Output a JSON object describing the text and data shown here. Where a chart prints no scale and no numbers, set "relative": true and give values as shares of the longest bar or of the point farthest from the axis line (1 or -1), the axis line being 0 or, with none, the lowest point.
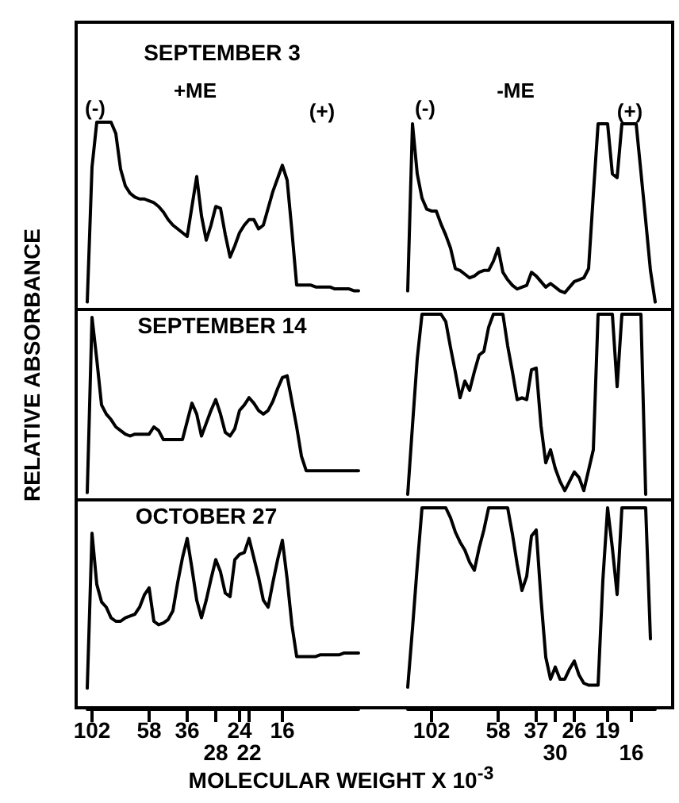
{
  "chart_data": [
    {
      "type": "line",
      "title": "SEPTEMBER 3",
      "ylabel": "RELATIVE ABSORBANCE",
      "annotations": [
        "(-)",
        "+ME",
        "(+)"
      ],
      "relative": true,
      "color": "#000000",
      "categories": [
        null,
        null,
        null,
        null,
        null,
        null,
        null,
        null,
        null,
        null,
        null,
        null,
        null,
        null,
        null,
        null,
        null,
        null,
        null,
        null,
        null,
        null,
        null,
        null,
        null,
        null,
        null,
        null,
        null,
        null,
        null,
        null,
        null,
        null,
        null,
        null,
        null,
        null,
        null,
        null,
        null,
        null,
        null,
        null,
        null,
        null,
        null,
        null,
        null,
        null,
        null,
        null,
        null,
        null,
        null,
        null,
        null,
        null
      ],
      "values": [
        0.04,
        0.76,
        1,
        1,
        1,
        1,
        0.94,
        0.75,
        0.66,
        0.62,
        0.6,
        0.59,
        0.59,
        0.58,
        0.57,
        0.55,
        0.52,
        0.48,
        0.45,
        0.43,
        0.41,
        0.39,
        0.55,
        0.71,
        0.5,
        0.37,
        0.45,
        0.55,
        0.54,
        0.4,
        0.28,
        0.34,
        0.41,
        0.45,
        0.48,
        0.48,
        0.43,
        0.45,
        0.54,
        0.63,
        0.7,
        0.77,
        0.69,
        0.42,
        0.13,
        0.13,
        0.13,
        0.13,
        0.12,
        0.12,
        0.12,
        0.12,
        0.11,
        0.11,
        0.11,
        0.11,
        0.1,
        0.1
      ]
    },
    {
      "type": "line",
      "annotations": [
        "(-)",
        "-ME",
        "(+)"
      ],
      "relative": true,
      "color": "#000000",
      "categories": [
        null,
        null,
        null,
        null,
        null,
        null,
        null,
        null,
        null,
        null,
        null,
        null,
        null,
        null,
        null,
        null,
        null,
        null,
        null,
        null,
        null,
        null,
        null,
        null,
        null,
        null,
        null,
        null,
        null,
        null,
        null,
        null,
        null,
        null,
        null,
        null,
        null,
        null,
        null,
        null,
        null,
        null,
        null,
        null,
        null,
        null,
        null,
        null,
        null,
        null,
        null,
        null,
        null
      ],
      "values": [
        0.1,
        1,
        0.73,
        0.6,
        0.54,
        0.53,
        0.53,
        0.46,
        0.4,
        0.33,
        0.22,
        0.21,
        0.19,
        0.17,
        0.18,
        0.2,
        0.21,
        0.21,
        0.26,
        0.33,
        0.2,
        0.16,
        0.13,
        0.11,
        0.12,
        0.13,
        0.2,
        0.18,
        0.15,
        0.12,
        0.14,
        0.12,
        0.1,
        0.09,
        0.12,
        0.15,
        0.16,
        0.17,
        0.22,
        0.62,
        1,
        1,
        1,
        0.73,
        0.71,
        1,
        1,
        1,
        1,
        0.74,
        0.48,
        0.21,
        0.04
      ]
    },
    {
      "type": "line",
      "title": "SEPTEMBER 14",
      "relative": true,
      "color": "#000000",
      "categories": [
        null,
        null,
        null,
        null,
        null,
        null,
        null,
        null,
        null,
        null,
        null,
        null,
        null,
        null,
        null,
        null,
        null,
        null,
        null,
        null,
        null,
        null,
        null,
        null,
        null,
        null,
        null,
        null,
        null,
        null,
        null,
        null,
        null,
        null,
        null,
        null,
        null,
        null,
        null,
        null,
        null,
        null,
        null,
        null,
        null,
        null,
        null,
        null,
        null,
        null,
        null,
        null,
        null,
        null,
        null,
        null,
        null,
        null
      ],
      "values": [
        0.04,
        1,
        0.77,
        0.52,
        0.47,
        0.44,
        0.4,
        0.38,
        0.36,
        0.35,
        0.36,
        0.36,
        0.36,
        0.36,
        0.4,
        0.38,
        0.33,
        0.33,
        0.33,
        0.33,
        0.33,
        0.43,
        0.53,
        0.47,
        0.35,
        0.42,
        0.49,
        0.55,
        0.47,
        0.37,
        0.35,
        0.39,
        0.49,
        0.52,
        0.56,
        0.53,
        0.49,
        0.47,
        0.49,
        0.54,
        0.61,
        0.67,
        0.68,
        0.54,
        0.4,
        0.24,
        0.16,
        0.16,
        0.16,
        0.16,
        0.16,
        0.16,
        0.16,
        0.16,
        0.16,
        0.16,
        0.16,
        0.16
      ]
    },
    {
      "type": "line",
      "relative": true,
      "color": "#000000",
      "categories": [
        null,
        null,
        null,
        null,
        null,
        null,
        null,
        null,
        null,
        null,
        null,
        null,
        null,
        null,
        null,
        null,
        null,
        null,
        null,
        null,
        null,
        null,
        null,
        null,
        null,
        null,
        null,
        null,
        null,
        null,
        null,
        null,
        null,
        null,
        null,
        null,
        null,
        null,
        null,
        null,
        null,
        null,
        null,
        null,
        null,
        null,
        null,
        null,
        null,
        null,
        null,
        null,
        null
      ],
      "values": [
        0.03,
        0.4,
        0.76,
        1,
        1,
        1,
        1,
        1,
        0.96,
        0.82,
        0.69,
        0.55,
        0.64,
        0.59,
        0.69,
        0.78,
        0.8,
        0.93,
        1,
        1,
        1,
        0.83,
        0.69,
        0.54,
        0.55,
        0.54,
        0.7,
        0.71,
        0.4,
        0.2,
        0.27,
        0.17,
        0.1,
        0.05,
        0.1,
        0.15,
        0.12,
        0.05,
        0.16,
        0.27,
        1,
        1,
        1,
        1,
        0.61,
        1,
        1,
        1,
        1,
        1,
        0.03,
        null,
        null
      ]
    },
    {
      "type": "line",
      "title": "OCTOBER 27",
      "xlabel": "MOLECULAR WEIGHT X 10$^{-3}$",
      "relative": true,
      "tick_labels": "x",
      "color": "#000000",
      "categories": [
        null,
        "102",
        null,
        null,
        null,
        null,
        null,
        null,
        null,
        null,
        null,
        null,
        null,
        "58",
        null,
        null,
        null,
        null,
        null,
        null,
        null,
        "36",
        null,
        null,
        null,
        null,
        null,
        "28",
        null,
        null,
        null,
        null,
        "24",
        null,
        "22",
        null,
        null,
        null,
        null,
        null,
        null,
        "16",
        null,
        null,
        null,
        null,
        null,
        null,
        null,
        null,
        null,
        null,
        null,
        null,
        null,
        null,
        null,
        null
      ],
      "values": [
        0.12,
        1,
        0.71,
        0.61,
        0.58,
        0.52,
        0.5,
        0.5,
        0.52,
        0.53,
        0.54,
        0.58,
        0.65,
        0.69,
        0.5,
        0.48,
        0.49,
        0.51,
        0.56,
        0.72,
        0.86,
        0.97,
        0.8,
        0.62,
        0.52,
        0.62,
        0.74,
        0.85,
        0.78,
        0.66,
        0.64,
        0.85,
        0.88,
        0.89,
        0.97,
        0.86,
        0.75,
        0.62,
        0.58,
        0.72,
        0.85,
        0.96,
        0.74,
        0.48,
        0.3,
        0.3,
        0.3,
        0.3,
        0.3,
        0.31,
        0.31,
        0.31,
        0.31,
        0.31,
        0.32,
        0.32,
        0.32,
        0.32
      ]
    },
    {
      "type": "line",
      "relative": true,
      "tick_labels": "x",
      "color": "#000000",
      "categories": [
        null,
        null,
        null,
        null,
        null,
        "102",
        null,
        null,
        null,
        null,
        null,
        null,
        null,
        null,
        null,
        null,
        null,
        null,
        null,
        "58",
        null,
        null,
        null,
        null,
        null,
        null,
        null,
        "37",
        null,
        null,
        null,
        "30",
        null,
        null,
        null,
        "26",
        null,
        null,
        null,
        null,
        null,
        null,
        "19",
        null,
        null,
        null,
        null,
        "16",
        null,
        null,
        null,
        null,
        null
      ],
      "values": [
        0.11,
        0.4,
        0.71,
        1,
        1,
        1,
        1,
        1,
        1,
        0.95,
        0.88,
        0.83,
        0.79,
        0.73,
        0.69,
        0.8,
        0.89,
        1,
        1,
        1,
        1,
        1,
        0.87,
        0.72,
        0.59,
        0.66,
        0.86,
        0.89,
        0.55,
        0.26,
        0.15,
        0.21,
        0.15,
        0.15,
        0.2,
        0.24,
        0.17,
        0.13,
        0.12,
        0.12,
        0.12,
        0.64,
        1,
        0.8,
        0.57,
        1,
        1,
        1,
        1,
        1,
        1,
        0.35,
        null
      ]
    }
  ]
}
